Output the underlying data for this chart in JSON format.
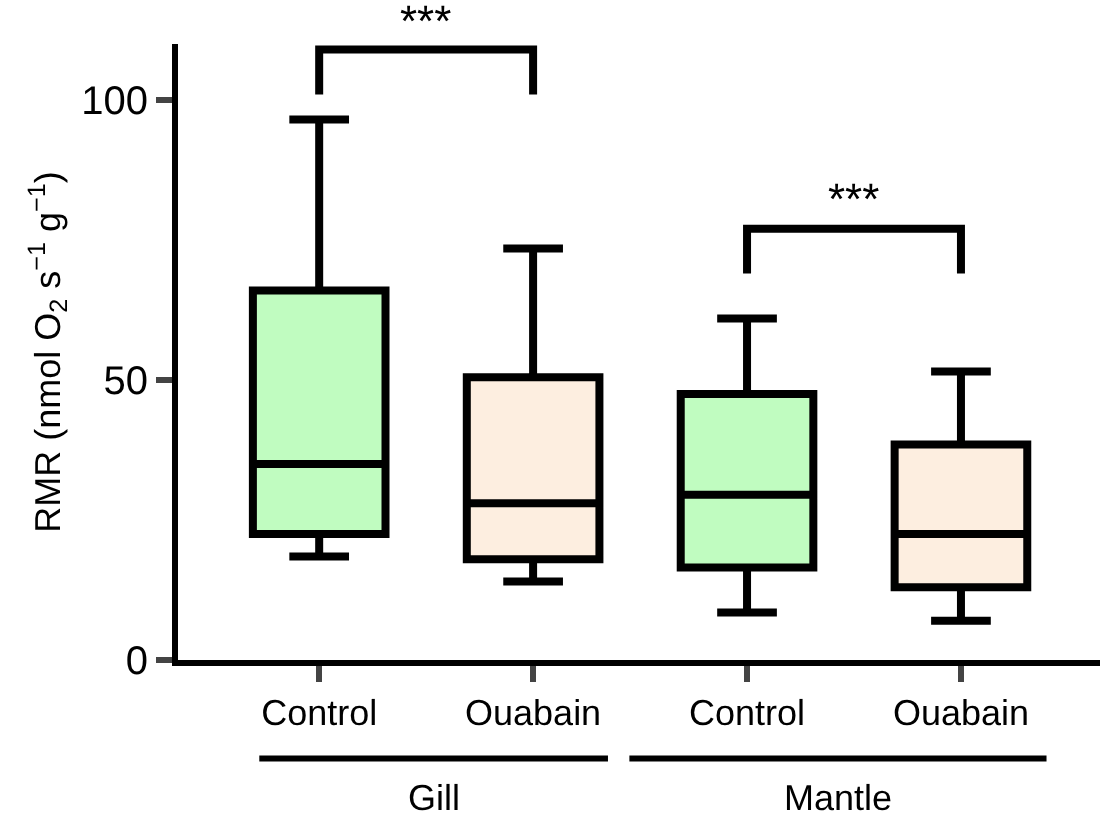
{
  "chart_data": {
    "type": "box",
    "ylabel": "RMR (nmol O$_{2}$ s$^{−1}$ g$^{−1}$)",
    "categories": [
      "Control",
      "Ouabain",
      "Control",
      "Ouabain"
    ],
    "boxes": [
      {
        "low": 18.5,
        "q1": 22.5,
        "median": 35,
        "q3": 66,
        "high": 96.5
      },
      {
        "low": 14,
        "q1": 18,
        "median": 28,
        "q3": 50.5,
        "high": 73.5
      },
      {
        "low": 8.5,
        "q1": 16.5,
        "median": 29.5,
        "q3": 47.5,
        "high": 61
      },
      {
        "low": 7,
        "q1": 13,
        "median": 22.5,
        "q3": 38.5,
        "high": 51.5
      }
    ],
    "colors": [
      "#c0fcc0",
      "#fdeee0",
      "#c0fcc0",
      "#fdeee0"
    ],
    "ylim": [
      0,
      110
    ],
    "yticks": [
      0,
      50,
      100
    ],
    "legend": false,
    "annotations": [
      "***",
      "***",
      "Gill",
      "Mantle"
    ]
  }
}
